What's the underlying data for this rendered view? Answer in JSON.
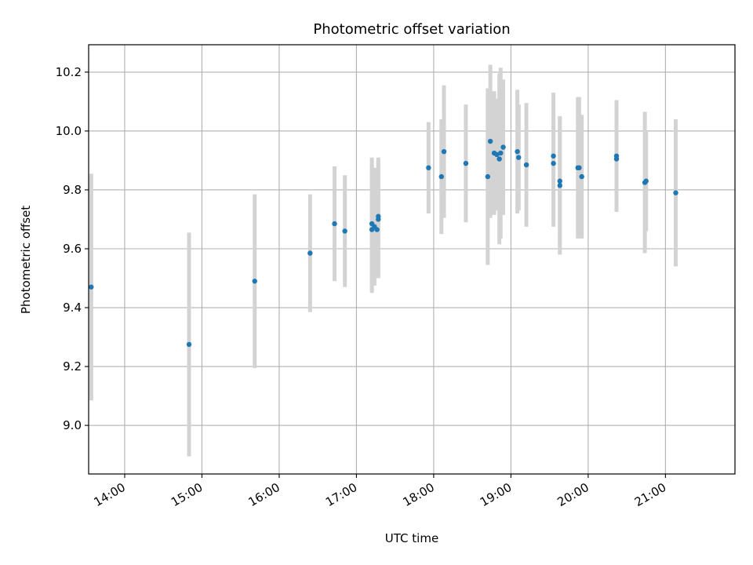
{
  "chart_data": {
    "type": "scatter",
    "title": "Photometric offset variation",
    "xlabel": "UTC time",
    "ylabel": "Photometric offset",
    "x_ticks": [
      "14:00",
      "15:00",
      "16:00",
      "17:00",
      "18:00",
      "19:00",
      "20:00",
      "21:00"
    ],
    "y_ticks": [
      "9.0",
      "9.2",
      "9.4",
      "9.6",
      "9.8",
      "10.0",
      "10.2"
    ],
    "xlim": [
      "13:32",
      "21:54"
    ],
    "ylim": [
      8.835,
      10.293
    ],
    "grid": true,
    "point_color": "#1f77b4",
    "errorbar_color": "#d3d3d3",
    "series": [
      {
        "points": [
          {
            "x": "13:34",
            "y": 9.47,
            "err": 0.385
          },
          {
            "x": "14:50",
            "y": 9.275,
            "err": 0.38
          },
          {
            "x": "15:41",
            "y": 9.49,
            "err": 0.295
          },
          {
            "x": "16:24",
            "y": 9.585,
            "err": 0.2
          },
          {
            "x": "16:43",
            "y": 9.685,
            "err": 0.195
          },
          {
            "x": "16:51",
            "y": 9.66,
            "err": 0.19
          },
          {
            "x": "17:12",
            "y": 9.685,
            "err": 0.225
          },
          {
            "x": "17:12",
            "y": 9.665,
            "err": 0.215
          },
          {
            "x": "17:14",
            "y": 9.675,
            "err": 0.2
          },
          {
            "x": "17:16",
            "y": 9.665,
            "err": 0.15
          },
          {
            "x": "17:17",
            "y": 9.71,
            "err": 0.2
          },
          {
            "x": "17:17",
            "y": 9.7,
            "err": 0.2
          },
          {
            "x": "17:56",
            "y": 9.875,
            "err": 0.155
          },
          {
            "x": "18:06",
            "y": 9.845,
            "err": 0.195
          },
          {
            "x": "18:08",
            "y": 9.93,
            "err": 0.225
          },
          {
            "x": "18:25",
            "y": 9.89,
            "err": 0.2
          },
          {
            "x": "18:42",
            "y": 9.845,
            "err": 0.3
          },
          {
            "x": "18:44",
            "y": 9.965,
            "err": 0.26
          },
          {
            "x": "18:47",
            "y": 9.925,
            "err": 0.21
          },
          {
            "x": "18:49",
            "y": 9.92,
            "err": 0.19
          },
          {
            "x": "18:51",
            "y": 9.905,
            "err": 0.29
          },
          {
            "x": "18:52",
            "y": 9.925,
            "err": 0.29
          },
          {
            "x": "18:54",
            "y": 9.945,
            "err": 0.23
          },
          {
            "x": "19:05",
            "y": 9.93,
            "err": 0.21
          },
          {
            "x": "19:06",
            "y": 9.91,
            "err": 0.18
          },
          {
            "x": "19:12",
            "y": 9.885,
            "err": 0.21
          },
          {
            "x": "19:33",
            "y": 9.915,
            "err": 0.215
          },
          {
            "x": "19:33",
            "y": 9.89,
            "err": 0.215
          },
          {
            "x": "19:38",
            "y": 9.83,
            "err": 0.215
          },
          {
            "x": "19:38",
            "y": 9.815,
            "err": 0.235
          },
          {
            "x": "19:52",
            "y": 9.875,
            "err": 0.24
          },
          {
            "x": "19:53",
            "y": 9.875,
            "err": 0.24
          },
          {
            "x": "19:55",
            "y": 9.845,
            "err": 0.21
          },
          {
            "x": "20:22",
            "y": 9.915,
            "err": 0.19
          },
          {
            "x": "20:22",
            "y": 9.905,
            "err": 0.175
          },
          {
            "x": "20:44",
            "y": 9.825,
            "err": 0.24
          },
          {
            "x": "20:45",
            "y": 9.83,
            "err": 0.17
          },
          {
            "x": "21:08",
            "y": 9.79,
            "err": 0.25
          }
        ]
      }
    ]
  }
}
